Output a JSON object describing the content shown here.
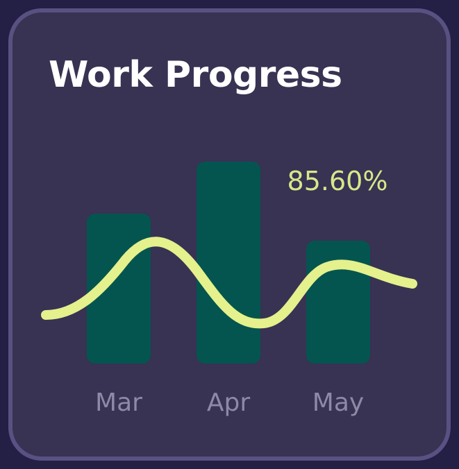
{
  "card": {
    "title": "Work Progress"
  },
  "colors": {
    "background": "#231f45",
    "card": "#383253",
    "card_border": "#585182",
    "bar": "#04554f",
    "trend_line": "#e4f18c",
    "data_label": "#d8e789",
    "category_label": "#8e89a6",
    "title": "#ffffff"
  },
  "chart_data": {
    "type": "bar",
    "title": "Work Progress",
    "categories": [
      "Mar",
      "Apr",
      "May"
    ],
    "series": [
      {
        "values": [
          72,
          97,
          59
        ]
      }
    ],
    "trend_line": {
      "type": "line",
      "smooth": true
    },
    "annotations": [
      {
        "text": "85.60%",
        "category": "May"
      }
    ],
    "ylim": [
      0,
      100
    ],
    "grid": false,
    "legend": "none"
  }
}
